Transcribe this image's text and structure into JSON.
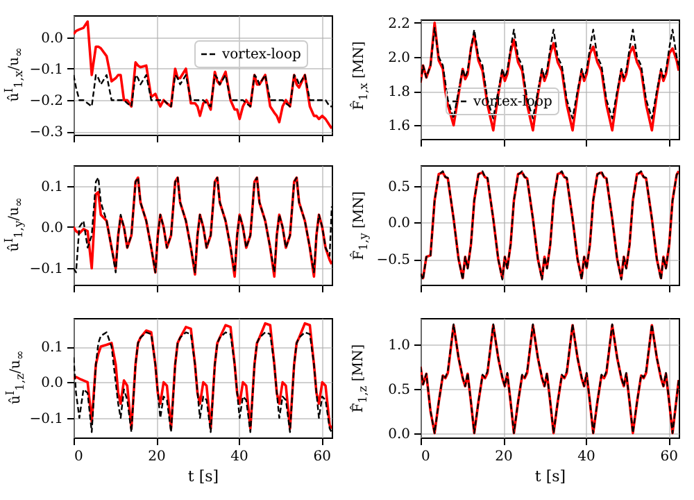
{
  "chart_data": [
    {
      "type": "line",
      "ylabel": "û$^{I}$$_{1,x}$/u$_{∞}$",
      "xlim": [
        0,
        62.5
      ],
      "xticks": [
        0,
        20,
        40,
        60
      ],
      "ylim": [
        -0.31,
        0.07
      ],
      "yticks": [
        {
          "value": -0.3,
          "label": "−0.3"
        },
        {
          "value": -0.2,
          "label": "−0.2"
        },
        {
          "value": -0.1,
          "label": "−0.1"
        },
        {
          "value": 0,
          "label": "0.0"
        }
      ],
      "grid": true,
      "legend": "top right",
      "tick_labels": "y",
      "marker": "none",
      "x": [
        0,
        0.6,
        1.4,
        2.4,
        3.4,
        4.4,
        5.4,
        6.0,
        6.6,
        8.0,
        9.2,
        10.2,
        10.8,
        11.4,
        12.2,
        13.0,
        14.0,
        15.0,
        15.6,
        16.2,
        17.6,
        18.8,
        19.8,
        20.4,
        21.0,
        21.8,
        22.6,
        23.6,
        24.6,
        25.2,
        25.8,
        27.2,
        28.4,
        29.4,
        30.0,
        30.6,
        31.4,
        32.2,
        33.2,
        34.2,
        34.8,
        35.4,
        36.8,
        38.0,
        39.0,
        39.6,
        40.2,
        41.0,
        41.8,
        42.8,
        43.8,
        44.4,
        45.0,
        46.4,
        47.6,
        48.6,
        49.2,
        49.8,
        50.6,
        51.4,
        52.4,
        53.4,
        54.0,
        54.6,
        56.0,
        57.2,
        58.2,
        58.8,
        59.4,
        60.2,
        61.0,
        62.0,
        62.5
      ],
      "series": [
        {
          "name": "vortex-loop",
          "color": "#000000",
          "line_style": "dashed",
          "values": [
            -0.12,
            -0.16,
            -0.2,
            -0.2,
            -0.21,
            -0.22,
            -0.12,
            -0.13,
            -0.15,
            -0.12,
            -0.2,
            -0.2,
            -0.2,
            -0.2,
            -0.2,
            -0.21,
            -0.22,
            -0.12,
            -0.13,
            -0.15,
            -0.12,
            -0.2,
            -0.2,
            -0.2,
            -0.2,
            -0.2,
            -0.21,
            -0.22,
            -0.12,
            -0.13,
            -0.15,
            -0.12,
            -0.2,
            -0.2,
            -0.2,
            -0.2,
            -0.2,
            -0.21,
            -0.22,
            -0.12,
            -0.13,
            -0.15,
            -0.12,
            -0.2,
            -0.2,
            -0.2,
            -0.2,
            -0.2,
            -0.21,
            -0.22,
            -0.12,
            -0.13,
            -0.15,
            -0.12,
            -0.2,
            -0.2,
            -0.2,
            -0.2,
            -0.2,
            -0.21,
            -0.22,
            -0.12,
            -0.13,
            -0.15,
            -0.12,
            -0.2,
            -0.2,
            -0.2,
            -0.2,
            -0.2,
            -0.2,
            -0.22,
            -0.22
          ]
        },
        {
          "color": "#ff0000",
          "line_style": "solid",
          "values": [
            0.01,
            0.02,
            0.025,
            0.03,
            0.05,
            -0.12,
            -0.03,
            -0.03,
            -0.035,
            -0.06,
            -0.14,
            -0.13,
            -0.12,
            -0.12,
            -0.2,
            -0.2,
            -0.22,
            -0.08,
            -0.09,
            -0.095,
            -0.09,
            -0.19,
            -0.18,
            -0.2,
            -0.22,
            -0.2,
            -0.21,
            -0.22,
            -0.1,
            -0.13,
            -0.13,
            -0.1,
            -0.21,
            -0.21,
            -0.22,
            -0.25,
            -0.21,
            -0.2,
            -0.23,
            -0.11,
            -0.14,
            -0.15,
            -0.11,
            -0.2,
            -0.23,
            -0.23,
            -0.26,
            -0.22,
            -0.2,
            -0.22,
            -0.12,
            -0.15,
            -0.15,
            -0.12,
            -0.22,
            -0.24,
            -0.25,
            -0.27,
            -0.22,
            -0.2,
            -0.22,
            -0.12,
            -0.15,
            -0.16,
            -0.12,
            -0.22,
            -0.25,
            -0.25,
            -0.26,
            -0.25,
            -0.26,
            -0.28,
            -0.29
          ]
        }
      ]
    },
    {
      "type": "line",
      "ylabel": "F̂$_{1,x}$ [MN]",
      "xlim": [
        0,
        62.5
      ],
      "xticks": [
        0,
        20,
        40,
        60
      ],
      "ylim": [
        1.52,
        2.22
      ],
      "yticks": [
        {
          "value": 1.6,
          "label": "1.6"
        },
        {
          "value": 1.8,
          "label": "1.8"
        },
        {
          "value": 2.0,
          "label": "2.0"
        },
        {
          "value": 2.2,
          "label": "2.2"
        }
      ],
      "grid": true,
      "legend": "bottom left",
      "tick_labels": "y",
      "marker": "none",
      "x": [
        0,
        0.6,
        1.4,
        2.4,
        3.4,
        4.4,
        5.4,
        6.0,
        6.6,
        8.0,
        9.2,
        10.2,
        10.8,
        11.4,
        12.2,
        13.0,
        14.0,
        15.0,
        15.6,
        16.2,
        17.6,
        18.8,
        19.8,
        20.4,
        21.0,
        21.8,
        22.6,
        23.6,
        24.6,
        25.2,
        25.8,
        27.2,
        28.4,
        29.4,
        30.0,
        30.6,
        31.4,
        32.2,
        33.2,
        34.2,
        34.8,
        35.4,
        36.8,
        38.0,
        39.0,
        39.6,
        40.2,
        41.0,
        41.8,
        42.8,
        43.8,
        44.4,
        45.0,
        46.4,
        47.6,
        48.6,
        49.2,
        49.8,
        50.6,
        51.4,
        52.4,
        53.4,
        54.0,
        54.6,
        56.0,
        57.2,
        58.2,
        58.8,
        59.4,
        60.2,
        61.0,
        62.0,
        62.5
      ],
      "series": [
        {
          "name": "vortex-loop",
          "color": "#000000",
          "line_style": "dashed",
          "values": [
            1.85,
            1.95,
            1.88,
            1.95,
            2.17,
            2.0,
            1.95,
            1.85,
            1.75,
            1.64,
            1.8,
            1.93,
            1.88,
            1.92,
            2.05,
            2.16,
            2.0,
            1.95,
            1.85,
            1.75,
            1.64,
            1.8,
            1.93,
            1.88,
            1.92,
            2.05,
            2.16,
            2.0,
            1.95,
            1.85,
            1.75,
            1.64,
            1.8,
            1.93,
            1.88,
            1.92,
            2.05,
            2.16,
            2.0,
            1.95,
            1.85,
            1.75,
            1.64,
            1.8,
            1.93,
            1.88,
            1.92,
            2.05,
            2.16,
            2.0,
            1.95,
            1.85,
            1.75,
            1.64,
            1.8,
            1.93,
            1.88,
            1.92,
            2.05,
            2.16,
            2.0,
            1.95,
            1.85,
            1.75,
            1.64,
            1.8,
            1.93,
            1.88,
            1.92,
            2.05,
            2.16,
            2.0,
            1.95
          ]
        },
        {
          "color": "#ff0000",
          "line_style": "solid",
          "values": [
            1.85,
            1.95,
            1.88,
            1.95,
            2.2,
            1.98,
            1.93,
            1.8,
            1.72,
            1.6,
            1.78,
            1.93,
            1.87,
            1.9,
            2.05,
            2.13,
            1.98,
            1.92,
            1.82,
            1.72,
            1.57,
            1.78,
            1.92,
            1.86,
            1.9,
            2.03,
            2.1,
            1.97,
            1.92,
            1.82,
            1.72,
            1.57,
            1.78,
            1.92,
            1.86,
            1.9,
            2.02,
            2.08,
            1.97,
            1.92,
            1.82,
            1.72,
            1.57,
            1.78,
            1.92,
            1.86,
            1.9,
            2.02,
            2.06,
            1.97,
            1.92,
            1.82,
            1.72,
            1.57,
            1.78,
            1.92,
            1.86,
            1.9,
            2.02,
            2.06,
            1.97,
            1.92,
            1.82,
            1.72,
            1.57,
            1.78,
            1.92,
            1.86,
            1.9,
            2.02,
            2.05,
            1.98,
            1.92
          ]
        }
      ]
    },
    {
      "type": "line",
      "ylabel": "û$^{I}$$_{1,y}$/u$_{∞}$",
      "xlim": [
        0,
        62.5
      ],
      "xticks": [
        0,
        20,
        40,
        60
      ],
      "ylim": [
        -0.14,
        0.15
      ],
      "yticks": [
        {
          "value": -0.1,
          "label": "−0.1"
        },
        {
          "value": 0,
          "label": "0.0"
        },
        {
          "value": 0.1,
          "label": "0.1"
        }
      ],
      "grid": true,
      "tick_labels": "y",
      "marker": "none",
      "x": [
        0,
        0.6,
        1.4,
        2.4,
        3.4,
        4.4,
        5.4,
        6.0,
        6.6,
        8.0,
        9.2,
        10.2,
        10.8,
        11.4,
        12.2,
        13.0,
        14.0,
        15.0,
        15.6,
        16.2,
        17.6,
        18.8,
        19.8,
        20.4,
        21.0,
        21.8,
        22.6,
        23.6,
        24.6,
        25.2,
        25.8,
        27.2,
        28.4,
        29.4,
        30.0,
        30.6,
        31.4,
        32.2,
        33.2,
        34.2,
        34.8,
        35.4,
        36.8,
        38.0,
        39.0,
        39.6,
        40.2,
        41.0,
        41.8,
        42.8,
        43.8,
        44.4,
        45.0,
        46.4,
        47.6,
        48.6,
        49.2,
        49.8,
        50.6,
        51.4,
        52.4,
        53.4,
        54.0,
        54.6,
        56.0,
        57.2,
        58.2,
        58.8,
        59.4,
        60.2,
        61.0,
        62.0,
        62.5
      ],
      "series": [
        {
          "color": "#000000",
          "line_style": "dashed",
          "values": [
            -0.1,
            -0.11,
            0.0,
            0.015,
            -0.05,
            -0.02,
            0.11,
            0.12,
            0.06,
            0.015,
            -0.05,
            -0.11,
            -0.02,
            0.03,
            0.0,
            -0.05,
            -0.02,
            0.11,
            0.12,
            0.06,
            0.015,
            -0.05,
            -0.11,
            -0.02,
            0.03,
            0.0,
            -0.05,
            -0.02,
            0.11,
            0.12,
            0.06,
            0.015,
            -0.05,
            -0.11,
            -0.02,
            0.03,
            0.0,
            -0.05,
            -0.02,
            0.11,
            0.12,
            0.06,
            0.015,
            -0.05,
            -0.11,
            -0.02,
            0.03,
            0.0,
            -0.05,
            -0.02,
            0.11,
            0.12,
            0.06,
            0.015,
            -0.05,
            -0.11,
            -0.02,
            0.03,
            0.0,
            -0.05,
            -0.02,
            0.11,
            0.12,
            0.06,
            0.015,
            -0.05,
            -0.11,
            -0.02,
            0.03,
            0.0,
            -0.05,
            -0.07,
            0.05
          ]
        },
        {
          "color": "#ff0000",
          "line_style": "solid",
          "values": [
            0.0,
            -0.01,
            -0.015,
            -0.005,
            -0.01,
            -0.1,
            0.08,
            0.085,
            0.03,
            0.015,
            -0.05,
            -0.1,
            -0.02,
            0.025,
            0.0,
            -0.05,
            -0.02,
            0.11,
            0.12,
            0.06,
            0.015,
            -0.05,
            -0.11,
            -0.02,
            0.03,
            0.0,
            -0.05,
            -0.02,
            0.11,
            0.12,
            0.06,
            0.015,
            -0.05,
            -0.115,
            -0.02,
            0.03,
            0.0,
            -0.05,
            -0.02,
            0.11,
            0.12,
            0.06,
            0.015,
            -0.05,
            -0.12,
            -0.02,
            0.03,
            0.0,
            -0.05,
            -0.02,
            0.11,
            0.12,
            0.06,
            0.015,
            -0.05,
            -0.12,
            -0.02,
            0.03,
            0.0,
            -0.05,
            -0.02,
            0.11,
            0.12,
            0.06,
            0.015,
            -0.05,
            -0.12,
            -0.02,
            0.03,
            0.0,
            -0.05,
            -0.08,
            -0.09
          ]
        }
      ]
    },
    {
      "type": "line",
      "ylabel": "F̂$_{1,y}$ [MN]",
      "xlim": [
        0,
        62.5
      ],
      "xticks": [
        0,
        20,
        40,
        60
      ],
      "ylim": [
        -0.85,
        0.78
      ],
      "yticks": [
        {
          "value": -0.5,
          "label": "−0.5"
        },
        {
          "value": 0,
          "label": "0.0"
        },
        {
          "value": 0.5,
          "label": "0.5"
        }
      ],
      "grid": true,
      "tick_labels": "y",
      "marker": "none",
      "x": [
        0,
        0.6,
        1.4,
        2.4,
        3.4,
        4.4,
        5.4,
        6.0,
        6.6,
        8.0,
        9.2,
        10.2,
        10.8,
        11.4,
        12.2,
        13.0,
        14.0,
        15.0,
        15.6,
        16.2,
        17.6,
        18.8,
        19.8,
        20.4,
        21.0,
        21.8,
        22.6,
        23.6,
        24.6,
        25.2,
        25.8,
        27.2,
        28.4,
        29.4,
        30.0,
        30.6,
        31.4,
        32.2,
        33.2,
        34.2,
        34.8,
        35.4,
        36.8,
        38.0,
        39.0,
        39.6,
        40.2,
        41.0,
        41.8,
        42.8,
        43.8,
        44.4,
        45.0,
        46.4,
        47.6,
        48.6,
        49.2,
        49.8,
        50.6,
        51.4,
        52.4,
        53.4,
        54.0,
        54.6,
        56.0,
        57.2,
        58.2,
        58.8,
        59.4,
        60.2,
        61.0,
        62.0,
        62.5
      ],
      "series": [
        {
          "color": "#000000",
          "line_style": "dashed",
          "values": [
            -0.7,
            -0.78,
            -0.47,
            -0.45,
            0.3,
            0.65,
            0.7,
            0.62,
            0.61,
            0.05,
            -0.5,
            -0.78,
            -0.47,
            -0.63,
            -0.3,
            0.3,
            0.65,
            0.7,
            0.62,
            0.61,
            0.05,
            -0.5,
            -0.78,
            -0.47,
            -0.63,
            -0.3,
            0.3,
            0.65,
            0.7,
            0.62,
            0.61,
            0.05,
            -0.5,
            -0.78,
            -0.47,
            -0.63,
            -0.3,
            0.3,
            0.65,
            0.7,
            0.62,
            0.61,
            0.05,
            -0.5,
            -0.78,
            -0.47,
            -0.63,
            -0.3,
            0.3,
            0.65,
            0.7,
            0.62,
            0.61,
            0.05,
            -0.5,
            -0.78,
            -0.47,
            -0.63,
            -0.3,
            0.3,
            0.65,
            0.7,
            0.62,
            0.61,
            0.05,
            -0.5,
            -0.78,
            -0.47,
            -0.63,
            -0.3,
            0.3,
            0.65,
            0.7
          ]
        },
        {
          "color": "#ff0000",
          "line_style": "solid",
          "values": [
            -0.7,
            -0.76,
            -0.47,
            -0.45,
            0.3,
            0.66,
            0.68,
            0.62,
            0.6,
            0.05,
            -0.5,
            -0.76,
            -0.47,
            -0.62,
            -0.3,
            0.3,
            0.66,
            0.68,
            0.62,
            0.6,
            0.05,
            -0.5,
            -0.76,
            -0.47,
            -0.62,
            -0.3,
            0.3,
            0.66,
            0.68,
            0.62,
            0.6,
            0.05,
            -0.5,
            -0.76,
            -0.47,
            -0.62,
            -0.3,
            0.3,
            0.66,
            0.68,
            0.62,
            0.6,
            0.05,
            -0.5,
            -0.76,
            -0.47,
            -0.62,
            -0.3,
            0.3,
            0.66,
            0.68,
            0.62,
            0.6,
            0.05,
            -0.5,
            -0.76,
            -0.47,
            -0.62,
            -0.3,
            0.3,
            0.66,
            0.68,
            0.62,
            0.6,
            0.05,
            -0.5,
            -0.76,
            -0.47,
            -0.62,
            -0.3,
            0.3,
            0.65,
            0.7
          ]
        }
      ]
    },
    {
      "type": "line",
      "ylabel": "û$^{I}$$_{1,z}$/u$_{∞}$",
      "xlabel": "t [s]",
      "xlim": [
        0,
        62.5
      ],
      "xticks": [
        0,
        20,
        40,
        60
      ],
      "ylim": [
        -0.155,
        0.18
      ],
      "yticks": [
        {
          "value": -0.1,
          "label": "−0.1"
        },
        {
          "value": 0,
          "label": "0.0"
        },
        {
          "value": 0.1,
          "label": "0.1"
        }
      ],
      "grid": true,
      "marker": "none",
      "x": [
        0,
        0.6,
        1.4,
        2.4,
        3.4,
        4.4,
        5.4,
        6.0,
        6.6,
        8.0,
        9.2,
        10.2,
        10.8,
        11.4,
        12.2,
        13.0,
        14.0,
        15.0,
        15.6,
        16.2,
        17.6,
        18.8,
        19.8,
        20.4,
        21.0,
        21.8,
        22.6,
        23.6,
        24.6,
        25.2,
        25.8,
        27.2,
        28.4,
        29.4,
        30.0,
        30.6,
        31.4,
        32.2,
        33.2,
        34.2,
        34.8,
        35.4,
        36.8,
        38.0,
        39.0,
        39.6,
        40.2,
        41.0,
        41.8,
        42.8,
        43.8,
        44.4,
        45.0,
        46.4,
        47.6,
        48.6,
        49.2,
        49.8,
        50.6,
        51.4,
        52.4,
        53.4,
        54.0,
        54.6,
        56.0,
        57.2,
        58.2,
        58.8,
        59.4,
        60.2,
        61.0,
        62.0,
        62.5
      ],
      "series": [
        {
          "color": "#000000",
          "line_style": "dashed",
          "values": [
            0.07,
            -0.03,
            -0.1,
            -0.02,
            -0.03,
            -0.14,
            0.05,
            0.11,
            0.13,
            0.14,
            0.1,
            0.0,
            -0.06,
            -0.1,
            -0.02,
            -0.05,
            -0.14,
            0.05,
            0.11,
            0.125,
            0.14,
            0.135,
            0.05,
            -0.03,
            -0.1,
            -0.04,
            -0.05,
            -0.14,
            0.05,
            0.11,
            0.125,
            0.14,
            0.135,
            0.05,
            -0.03,
            -0.1,
            -0.04,
            -0.05,
            -0.14,
            0.05,
            0.11,
            0.125,
            0.14,
            0.135,
            0.05,
            -0.03,
            -0.1,
            -0.04,
            -0.05,
            -0.14,
            0.05,
            0.11,
            0.125,
            0.14,
            0.135,
            0.05,
            -0.03,
            -0.1,
            -0.04,
            -0.05,
            -0.14,
            0.05,
            0.11,
            0.125,
            0.14,
            0.135,
            0.05,
            -0.03,
            -0.1,
            -0.04,
            -0.05,
            -0.13,
            -0.14
          ]
        },
        {
          "color": "#ff0000",
          "line_style": "solid",
          "values": [
            0.01,
            0.015,
            0.01,
            0.005,
            0.0,
            -0.11,
            0.05,
            0.08,
            0.1,
            0.105,
            0.11,
            0.05,
            -0.03,
            -0.06,
            0.005,
            -0.01,
            -0.13,
            0.05,
            0.11,
            0.125,
            0.145,
            0.14,
            0.05,
            -0.03,
            -0.06,
            0.0,
            -0.01,
            -0.13,
            0.05,
            0.11,
            0.125,
            0.155,
            0.15,
            0.05,
            -0.03,
            -0.06,
            0.0,
            -0.01,
            -0.13,
            0.05,
            0.11,
            0.125,
            0.16,
            0.155,
            0.05,
            -0.03,
            -0.06,
            0.0,
            -0.01,
            -0.13,
            0.05,
            0.11,
            0.125,
            0.165,
            0.16,
            0.05,
            -0.03,
            -0.06,
            0.0,
            -0.01,
            -0.13,
            0.05,
            0.11,
            0.125,
            0.165,
            0.16,
            0.05,
            -0.03,
            -0.06,
            0.0,
            -0.01,
            -0.12,
            -0.13
          ]
        }
      ]
    },
    {
      "type": "line",
      "ylabel": "F̂$_{1,z}$ [MN]",
      "xlabel": "t [s]",
      "xlim": [
        0,
        62.5
      ],
      "xticks": [
        0,
        20,
        40,
        60
      ],
      "ylim": [
        -0.05,
        1.3
      ],
      "yticks": [
        {
          "value": 0,
          "label": "0.0"
        },
        {
          "value": 0.5,
          "label": "0.5"
        },
        {
          "value": 1.0,
          "label": "1.0"
        }
      ],
      "grid": true,
      "marker": "none",
      "x": [
        0,
        0.6,
        1.4,
        2.4,
        3.4,
        4.4,
        5.4,
        6.0,
        6.6,
        8.0,
        9.2,
        10.2,
        10.8,
        11.4,
        12.2,
        13.0,
        14.0,
        15.0,
        15.6,
        16.2,
        17.6,
        18.8,
        19.8,
        20.4,
        21.0,
        21.8,
        22.6,
        23.6,
        24.6,
        25.2,
        25.8,
        27.2,
        28.4,
        29.4,
        30.0,
        30.6,
        31.4,
        32.2,
        33.2,
        34.2,
        34.8,
        35.4,
        36.8,
        38.0,
        39.0,
        39.6,
        40.2,
        41.0,
        41.8,
        42.8,
        43.8,
        44.4,
        45.0,
        46.4,
        47.6,
        48.6,
        49.2,
        49.8,
        50.6,
        51.4,
        52.4,
        53.4,
        54.0,
        54.6,
        56.0,
        57.2,
        58.2,
        58.8,
        59.4,
        60.2,
        61.0,
        62.0,
        62.5
      ],
      "series": [
        {
          "color": "#000000",
          "line_style": "dashed",
          "values": [
            0.75,
            0.55,
            0.67,
            0.25,
            0.0,
            0.35,
            0.66,
            0.63,
            0.7,
            1.23,
            0.85,
            0.63,
            0.53,
            0.68,
            0.35,
            0.0,
            0.35,
            0.66,
            0.63,
            0.7,
            1.23,
            0.85,
            0.63,
            0.53,
            0.68,
            0.35,
            0.0,
            0.35,
            0.66,
            0.63,
            0.7,
            1.23,
            0.85,
            0.63,
            0.53,
            0.68,
            0.35,
            0.0,
            0.35,
            0.66,
            0.63,
            0.7,
            1.23,
            0.85,
            0.63,
            0.53,
            0.68,
            0.35,
            0.0,
            0.35,
            0.66,
            0.63,
            0.7,
            1.23,
            0.85,
            0.63,
            0.53,
            0.68,
            0.35,
            0.0,
            0.35,
            0.66,
            0.63,
            0.7,
            1.23,
            0.85,
            0.63,
            0.53,
            0.68,
            0.35,
            0.0,
            0.4,
            0.6
          ]
        },
        {
          "color": "#ff0000",
          "line_style": "solid",
          "values": [
            0.75,
            0.55,
            0.67,
            0.25,
            0.0,
            0.35,
            0.65,
            0.62,
            0.68,
            1.22,
            0.85,
            0.62,
            0.53,
            0.67,
            0.35,
            0.0,
            0.35,
            0.65,
            0.62,
            0.68,
            1.22,
            0.85,
            0.62,
            0.53,
            0.67,
            0.35,
            0.0,
            0.35,
            0.65,
            0.62,
            0.68,
            1.22,
            0.85,
            0.62,
            0.53,
            0.67,
            0.35,
            0.0,
            0.35,
            0.65,
            0.62,
            0.68,
            1.22,
            0.85,
            0.62,
            0.53,
            0.67,
            0.35,
            0.0,
            0.35,
            0.65,
            0.62,
            0.68,
            1.22,
            0.85,
            0.62,
            0.53,
            0.67,
            0.35,
            0.0,
            0.35,
            0.65,
            0.62,
            0.68,
            1.22,
            0.85,
            0.62,
            0.53,
            0.67,
            0.35,
            0.0,
            0.4,
            0.6
          ]
        }
      ]
    }
  ]
}
